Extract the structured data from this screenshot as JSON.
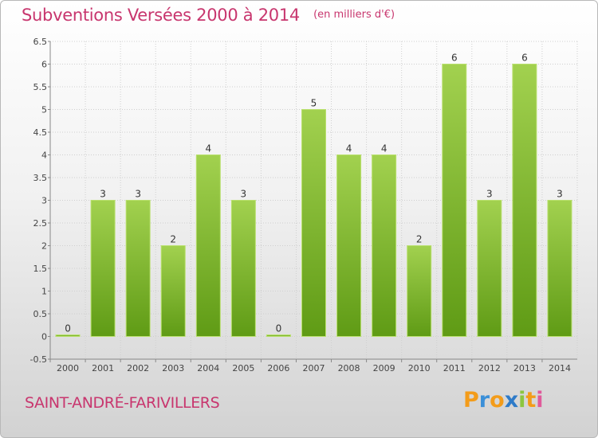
{
  "chart_data": {
    "type": "bar",
    "title": "Subventions Versées 2000 à 2014",
    "subtitle": "(en milliers d'€)",
    "categories": [
      "2000",
      "2001",
      "2002",
      "2003",
      "2004",
      "2005",
      "2006",
      "2007",
      "2008",
      "2009",
      "2010",
      "2011",
      "2012",
      "2013",
      "2014"
    ],
    "values": [
      0,
      3,
      3,
      2,
      4,
      3,
      0,
      5,
      4,
      4,
      2,
      6,
      3,
      6,
      3
    ],
    "value_labels": [
      "0",
      "3",
      "3",
      "2",
      "4",
      "3",
      "0",
      "5",
      "4",
      "4",
      "2",
      "6",
      "3",
      "6",
      "3"
    ],
    "ylim": [
      -0.5,
      6.5
    ],
    "yticks": [
      "-0.5",
      "0",
      "0.5",
      "1",
      "1.5",
      "2",
      "2.5",
      "3",
      "3.5",
      "4",
      "4.5",
      "5",
      "5.5",
      "6",
      "6.5"
    ],
    "grid": true,
    "colors": {
      "bar_top": "#a2d14f",
      "bar_bottom": "#5f9b15",
      "bar_edge": "#b9e06d",
      "title": "#c8366e",
      "grid": "#cfcfcf"
    }
  },
  "footer": {
    "commune": "SAINT-ANDRÉ-FARIVILLERS",
    "brand": {
      "letters": [
        "P",
        "r",
        "o",
        "x",
        "i",
        "t",
        "i"
      ],
      "colors": [
        "#f39c1a",
        "#3a8fd8",
        "#f39c1a",
        "#2e7bc8",
        "#8cc63f",
        "#f39c1a",
        "#e05a9b"
      ]
    }
  }
}
